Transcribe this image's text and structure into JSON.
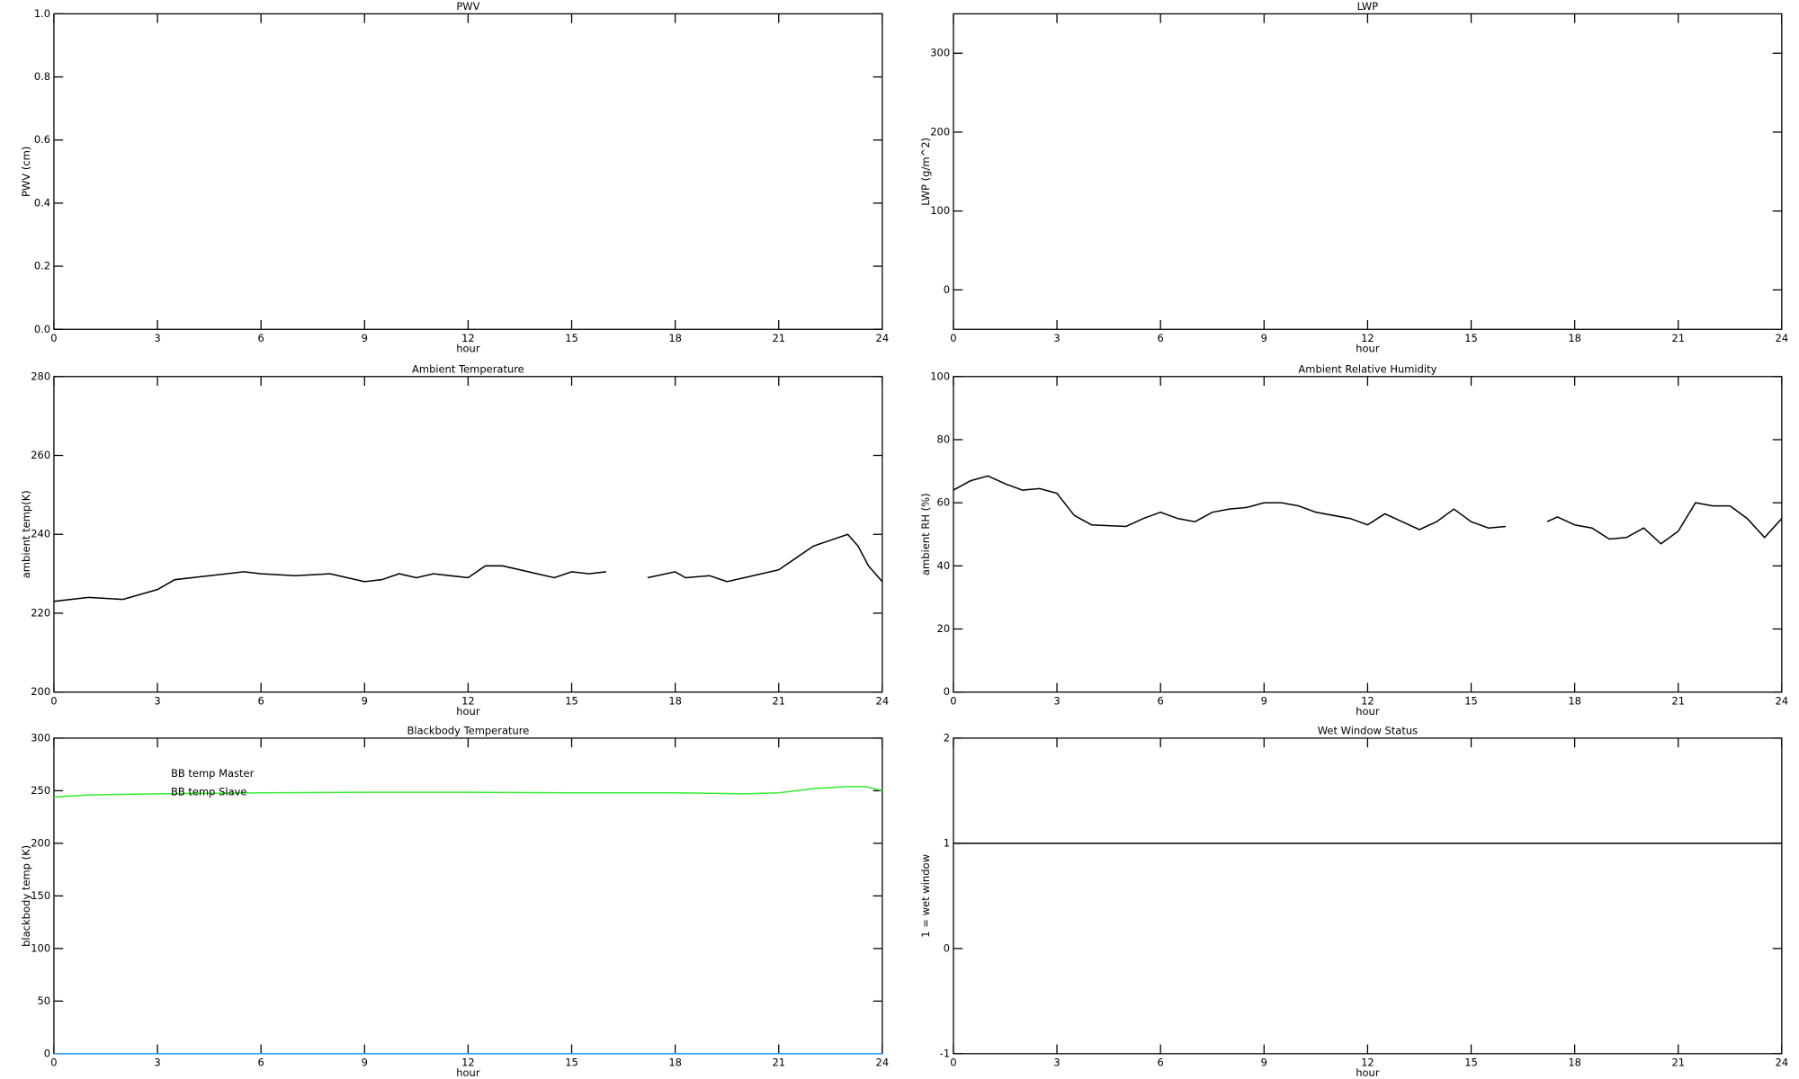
{
  "chart_data": [
    {
      "type": "line",
      "title": "PWV",
      "xlabel": "hour",
      "ylabel": "PWV (cm)",
      "xlim": [
        0,
        24
      ],
      "xticks": [
        0,
        3,
        6,
        9,
        12,
        15,
        18,
        21,
        24
      ],
      "ylim": [
        0,
        1
      ],
      "yticks": [
        {
          "value": 0,
          "label": "0.0"
        },
        {
          "value": 0.2,
          "label": "0.2"
        },
        {
          "value": 0.4,
          "label": "0.4"
        },
        {
          "value": 0.6,
          "label": "0.6"
        },
        {
          "value": 0.8,
          "label": "0.8"
        },
        {
          "value": 1,
          "label": "1.0"
        }
      ]
    },
    {
      "type": "line",
      "title": "LWP",
      "xlabel": "hour",
      "ylabel": "LWP (g/m^2)",
      "xlim": [
        0,
        24
      ],
      "xticks": [
        0,
        3,
        6,
        9,
        12,
        15,
        18,
        21,
        24
      ],
      "ylim": [
        -50,
        350
      ],
      "yticks": [
        0,
        100,
        200,
        300
      ]
    },
    {
      "type": "line",
      "title": "Ambient Temperature",
      "xlabel": "hour",
      "ylabel": "ambient temp(K)",
      "xlim": [
        0,
        24
      ],
      "xticks": [
        0,
        3,
        6,
        9,
        12,
        15,
        18,
        21,
        24
      ],
      "ylim": [
        200,
        280
      ],
      "yticks": [
        200,
        220,
        240,
        260,
        280
      ],
      "x": [
        0,
        1,
        2,
        3,
        3.5,
        4,
        5,
        5.5,
        6,
        7,
        8,
        9,
        9.5,
        10,
        10.5,
        11,
        12,
        12.5,
        13,
        14,
        14.5,
        15,
        15.5,
        16,
        16.5,
        17.2,
        18,
        18.3,
        19,
        19.5,
        20,
        21,
        21.5,
        22,
        22.5,
        23,
        23.3,
        23.6,
        24
      ],
      "series": [
        {
          "color": "#000000",
          "values": [
            223,
            224,
            223.5,
            226,
            228.5,
            229,
            230,
            230.5,
            230,
            229.5,
            230,
            228,
            228.5,
            230,
            229,
            230,
            229,
            232,
            232,
            230,
            229,
            230.5,
            230,
            230.5,
            null,
            229,
            230.5,
            229,
            229.5,
            228,
            229,
            231,
            234,
            237,
            238.5,
            240,
            237,
            232,
            228
          ]
        }
      ]
    },
    {
      "type": "line",
      "title": "Ambient Relative Humidity",
      "xlabel": "hour",
      "ylabel": "ambient RH (%)",
      "xlim": [
        0,
        24
      ],
      "xticks": [
        0,
        3,
        6,
        9,
        12,
        15,
        18,
        21,
        24
      ],
      "ylim": [
        0,
        100
      ],
      "yticks": [
        0,
        20,
        40,
        60,
        80,
        100
      ],
      "x": [
        0,
        0.5,
        1,
        1.5,
        2,
        2.5,
        3,
        3.5,
        4,
        5,
        5.5,
        6,
        6.5,
        7,
        7.5,
        8,
        8.5,
        9,
        9.5,
        10,
        10.5,
        11,
        11.5,
        12,
        12.5,
        13,
        13.5,
        14,
        14.5,
        15,
        15.5,
        16,
        16.5,
        17.2,
        17.5,
        18,
        18.5,
        19,
        19.5,
        20,
        20.5,
        21,
        21.5,
        22,
        22.5,
        23,
        23.5,
        24
      ],
      "series": [
        {
          "color": "#000000",
          "values": [
            64,
            67,
            68.5,
            66,
            64,
            64.5,
            63,
            56,
            53,
            52.5,
            55,
            57,
            55,
            54,
            57,
            58,
            58.5,
            60,
            60,
            59,
            57,
            56,
            55,
            53,
            56.5,
            54,
            51.5,
            54,
            58,
            54,
            52,
            52.5,
            null,
            54,
            55.5,
            53,
            52,
            48.5,
            49,
            52,
            47,
            51,
            60,
            59,
            59,
            55,
            49,
            55
          ]
        }
      ]
    },
    {
      "type": "line",
      "title": "Blackbody Temperature",
      "xlabel": "hour",
      "ylabel": "blackbody temp (K)",
      "xlim": [
        0,
        24
      ],
      "xticks": [
        0,
        3,
        6,
        9,
        12,
        15,
        18,
        21,
        24
      ],
      "ylim": [
        0,
        300
      ],
      "yticks": [
        0,
        50,
        100,
        150,
        200,
        250,
        300
      ],
      "legend": "upper left",
      "x": [
        0,
        1,
        3,
        6,
        9,
        12,
        15,
        18,
        20,
        21,
        22,
        23,
        23.5,
        24
      ],
      "series": [
        {
          "name": "BB temp Master",
          "color": "#3399ff",
          "values": [
            0,
            0,
            0,
            0,
            0,
            0,
            0,
            0,
            0,
            0,
            0,
            0,
            0,
            0
          ]
        },
        {
          "name": "BB temp Slave",
          "color": "#33ee33",
          "values": [
            244,
            246,
            247,
            248,
            248.5,
            248.5,
            248,
            248,
            247,
            248,
            252,
            254,
            254,
            250
          ]
        }
      ]
    },
    {
      "type": "line",
      "title": "Wet Window Status",
      "xlabel": "hour",
      "ylabel": "1 = wet window",
      "xlim": [
        0,
        24
      ],
      "xticks": [
        0,
        3,
        6,
        9,
        12,
        15,
        18,
        21,
        24
      ],
      "ylim": [
        -1,
        2
      ],
      "yticks": [
        -1,
        0,
        1,
        2
      ],
      "x": [
        0,
        24
      ],
      "series": [
        {
          "color": "#000000",
          "values": [
            1,
            1
          ]
        }
      ]
    }
  ]
}
